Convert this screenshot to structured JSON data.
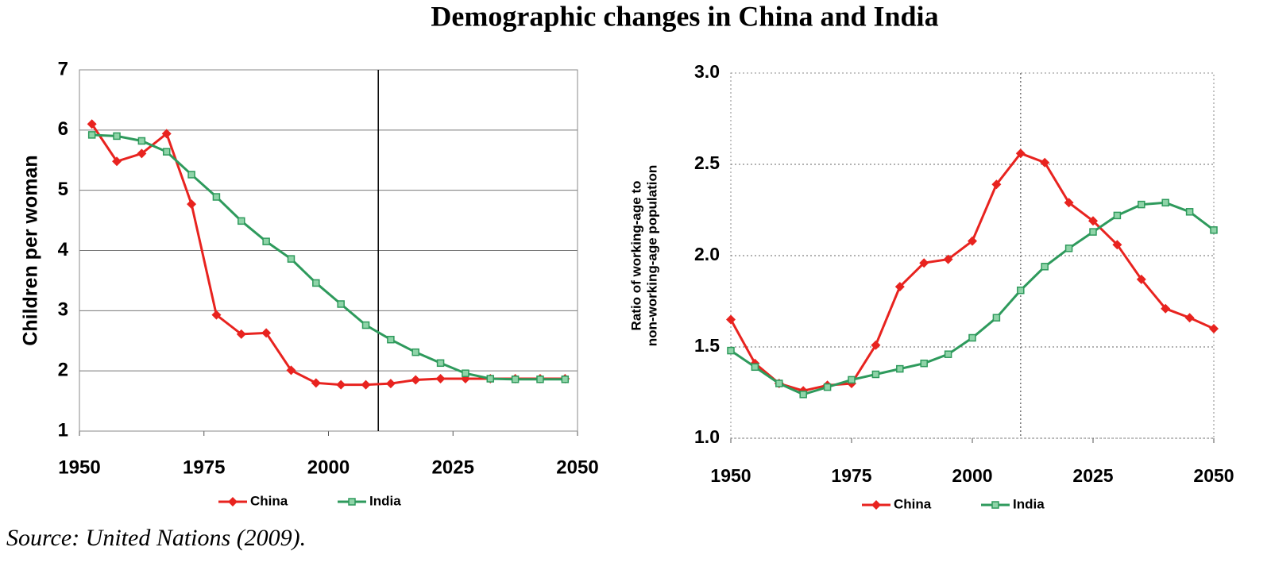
{
  "title": "Demographic changes in China and India",
  "source": "Source: United Nations (2009).",
  "chart_data": [
    {
      "type": "line",
      "ylabel": [
        "Children per woman"
      ],
      "x": [
        1952.5,
        1957.5,
        1962.5,
        1967.5,
        1972.5,
        1977.5,
        1982.5,
        1987.5,
        1992.5,
        1997.5,
        2002.5,
        2007.5,
        2012.5,
        2017.5,
        2022.5,
        2027.5,
        2032.5,
        2037.5,
        2042.5,
        2047.5
      ],
      "series": [
        {
          "name": "China",
          "color": "#e8231f",
          "marker": "diamond",
          "values": [
            6.1,
            5.48,
            5.61,
            5.94,
            4.77,
            2.93,
            2.61,
            2.63,
            2.01,
            1.8,
            1.77,
            1.77,
            1.79,
            1.85,
            1.87,
            1.87,
            1.87,
            1.87,
            1.87,
            1.87
          ]
        },
        {
          "name": "India",
          "color": "#2e9a5c",
          "marker": "square",
          "values": [
            5.92,
            5.9,
            5.82,
            5.64,
            5.26,
            4.89,
            4.49,
            4.15,
            3.86,
            3.46,
            3.11,
            2.76,
            2.52,
            2.31,
            2.13,
            1.96,
            1.87,
            1.86,
            1.86,
            1.86
          ]
        }
      ],
      "xlim": [
        1950,
        2050
      ],
      "xticks": [
        1950,
        1975,
        2000,
        2025,
        2050
      ],
      "ylim": [
        1,
        7
      ],
      "yticks": [
        1,
        2,
        3,
        4,
        5,
        6,
        7
      ],
      "grid": true,
      "vline": 2010,
      "legend": "bottom"
    },
    {
      "type": "line",
      "ylabel": [
        "Ratio of working-age to",
        "non-working-age population"
      ],
      "x": [
        1950,
        1955,
        1960,
        1965,
        1970,
        1975,
        1980,
        1985,
        1990,
        1995,
        2000,
        2005,
        2010,
        2015,
        2020,
        2025,
        2030,
        2035,
        2040,
        2045,
        2050
      ],
      "series": [
        {
          "name": "China",
          "color": "#e8231f",
          "marker": "diamond",
          "values": [
            1.65,
            1.41,
            1.3,
            1.26,
            1.29,
            1.3,
            1.51,
            1.83,
            1.96,
            1.98,
            2.08,
            2.39,
            2.56,
            2.51,
            2.29,
            2.19,
            2.06,
            1.87,
            1.71,
            1.66,
            1.6
          ]
        },
        {
          "name": "India",
          "color": "#2e9a5c",
          "marker": "square",
          "values": [
            1.48,
            1.39,
            1.3,
            1.24,
            1.28,
            1.32,
            1.35,
            1.38,
            1.41,
            1.46,
            1.55,
            1.66,
            1.81,
            1.94,
            2.04,
            2.13,
            2.22,
            2.28,
            2.29,
            2.24,
            2.14
          ]
        }
      ],
      "xlim": [
        1950,
        2050
      ],
      "xticks": [
        1950,
        1975,
        2000,
        2025,
        2050
      ],
      "ylim": [
        1,
        3
      ],
      "yticks": [
        {
          "value": 1,
          "label": "1.0"
        },
        1.5,
        {
          "value": 2,
          "label": "2.0"
        },
        2.5,
        {
          "value": 3,
          "label": "3.0"
        }
      ],
      "grid": true,
      "vline": 2010,
      "legend": "bottom"
    }
  ]
}
